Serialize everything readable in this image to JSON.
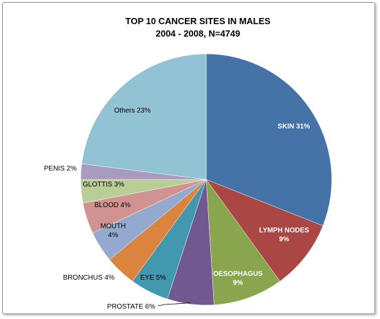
{
  "chart_data": {
    "type": "pie",
    "title": "TOP 10 CANCER SITES IN MALES",
    "subtitle": "2004 - 2008, N=4749",
    "slices": [
      {
        "label": "SKIN 31%",
        "value": 31,
        "color": "#4572A7",
        "text_style": "inside"
      },
      {
        "label": "LYMPH NODES 9%",
        "lines": [
          "LYMPH NODES",
          "9%"
        ],
        "value": 9,
        "color": "#AA4643",
        "text_style": "inside"
      },
      {
        "label": "OESOPHAGUS 9%",
        "lines": [
          "OESOPHAGUS",
          "9%"
        ],
        "value": 9,
        "color": "#89A54E",
        "text_style": "inside"
      },
      {
        "label": "PROSTATE 6%",
        "value": 6,
        "color": "#71588F",
        "text_style": "outside"
      },
      {
        "label": "EYE 5%",
        "value": 5,
        "color": "#4198AF",
        "text_style": "outside"
      },
      {
        "label": "BRONCHUS 4%",
        "value": 4,
        "color": "#DB843D",
        "text_style": "outside"
      },
      {
        "label": "MOUTH 4%",
        "lines": [
          "MOUTH",
          "4%"
        ],
        "value": 4,
        "color": "#93A9CF",
        "text_style": "outside"
      },
      {
        "label": "BLOOD 4%",
        "value": 4,
        "color": "#D19392",
        "text_style": "outside"
      },
      {
        "label": "GLOTTIS 3%",
        "value": 3,
        "color": "#B9CD96",
        "text_style": "outside"
      },
      {
        "label": "PENIS 2%",
        "value": 2,
        "color": "#A99BBD",
        "text_style": "outside"
      },
      {
        "label": "Others 23%",
        "value": 23,
        "color": "#92C3D4",
        "text_style": "outside"
      }
    ],
    "legend": "none"
  }
}
